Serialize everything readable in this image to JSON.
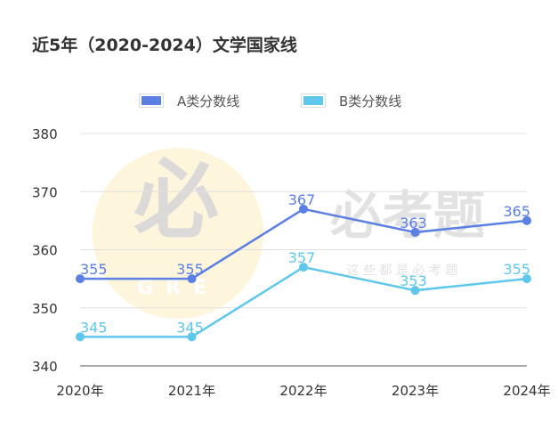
{
  "chart_data": {
    "type": "line",
    "title": "近5年（2020-2024）文学国家线",
    "categories": [
      "2020年",
      "2021年",
      "2022年",
      "2023年",
      "2024年"
    ],
    "series": [
      {
        "name": "A类分数线",
        "values": [
          355,
          355,
          367,
          363,
          365
        ],
        "color": "#5b7fe2"
      },
      {
        "name": "B类分数线",
        "values": [
          345,
          345,
          357,
          353,
          355
        ],
        "color": "#5ec7ea"
      }
    ],
    "ylim": [
      340,
      380
    ],
    "yticks": [
      340,
      350,
      360,
      370,
      380
    ],
    "grid": true,
    "legend": "top-center",
    "xlabel": "",
    "ylabel": ""
  },
  "watermark": {
    "logo_char": "必",
    "logo_sub": "GRE",
    "brand": "必考题",
    "slogan": "这 些 都 是 必 考 题"
  }
}
